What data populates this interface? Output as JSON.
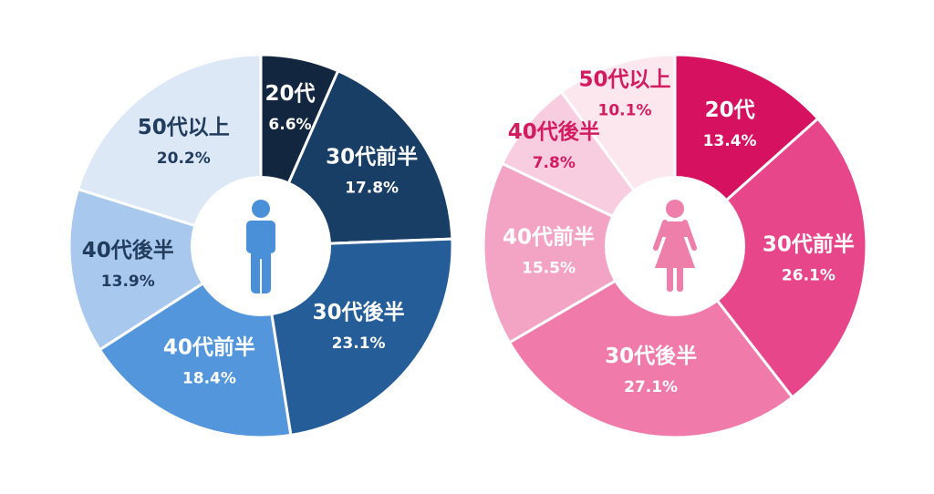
{
  "colors": {
    "male": [
      "#12263f",
      "#183e66",
      "#245d98",
      "#5396db",
      "#a8c8ed",
      "#dce8f6"
    ],
    "male_icon": "#4a90d9",
    "female": [
      "#d6115f",
      "#e8468a",
      "#f07aa9",
      "#f3a3c3",
      "#f8cddf",
      "#fde7ef"
    ],
    "female_icon": "#ee7fab",
    "label_dark": "#ffffff",
    "label_male_light": "#223c5e",
    "label_female_light": "#d31b5f"
  },
  "icons": {
    "male": "man-icon",
    "female": "woman-icon"
  },
  "chart_data": [
    {
      "type": "pie",
      "categories": [
        "20代",
        "30代前半",
        "30代後半",
        "40代前半",
        "40代後半",
        "50代以上"
      ],
      "values": [
        6.6,
        17.8,
        23.1,
        18.4,
        13.9,
        20.2
      ],
      "value_labels": [
        "6.6%",
        "17.8%",
        "23.1%",
        "18.4%",
        "13.9%",
        "20.2%"
      ],
      "donut": true
    },
    {
      "type": "pie",
      "categories": [
        "20代",
        "30代前半",
        "30代後半",
        "40代前半",
        "40代後半",
        "50代以上"
      ],
      "values": [
        13.4,
        26.1,
        27.1,
        15.5,
        7.8,
        10.1
      ],
      "value_labels": [
        "13.4%",
        "26.1%",
        "27.1%",
        "15.5%",
        "7.8%",
        "10.1%"
      ],
      "donut": true
    }
  ]
}
